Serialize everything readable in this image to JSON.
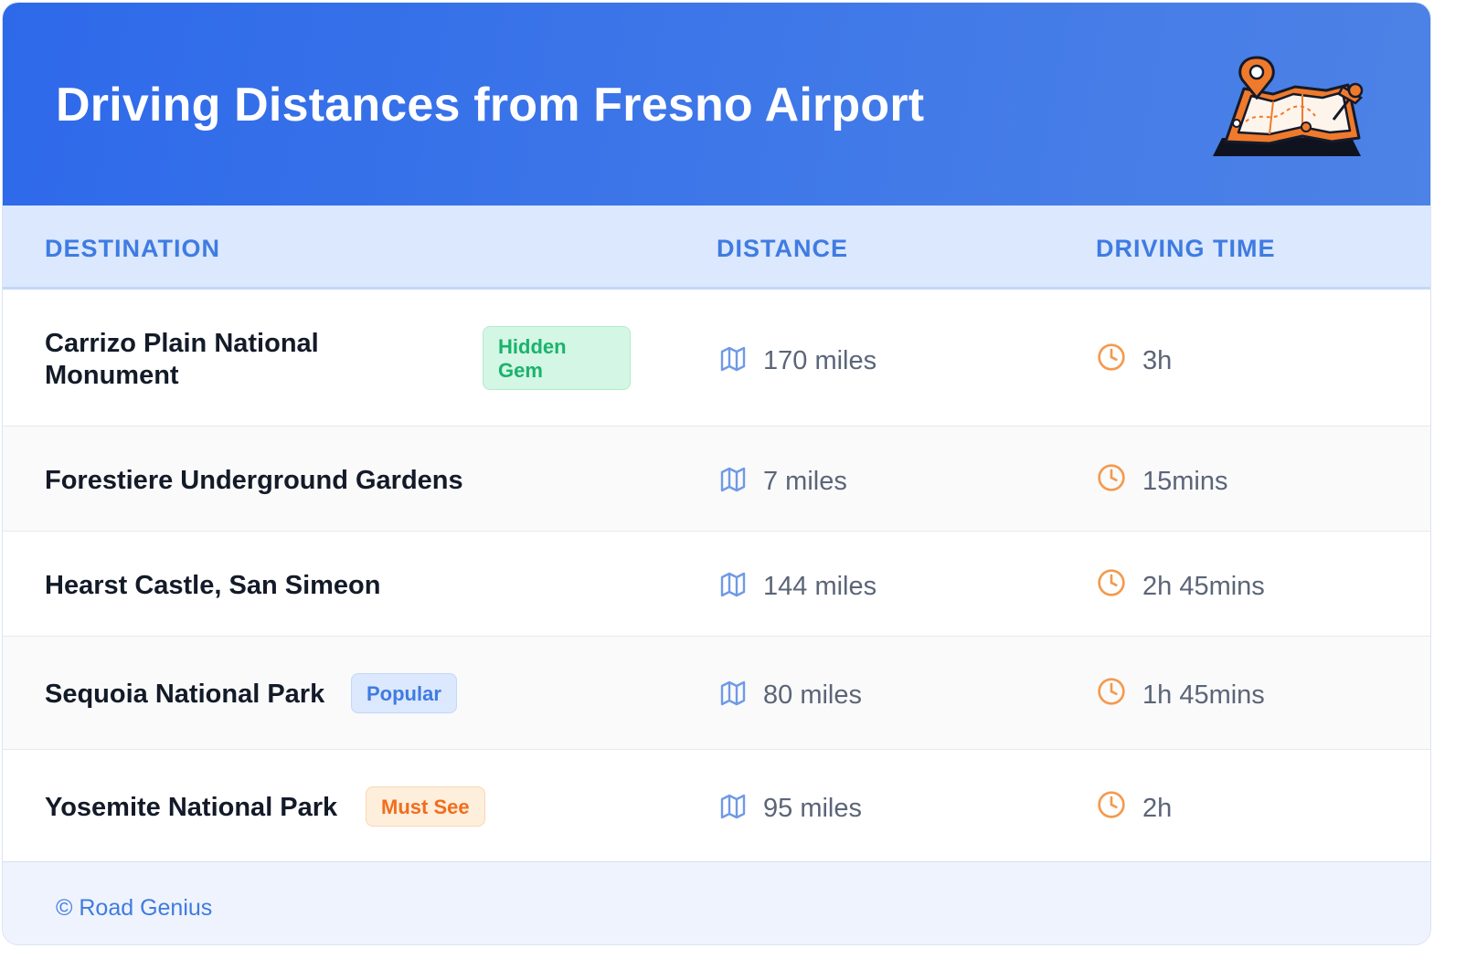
{
  "header": {
    "title": "Driving Distances from Fresno Airport",
    "illustration": "map-with-pins-illustration"
  },
  "table": {
    "columns": [
      "DESTINATION",
      "DISTANCE",
      "DRIVING TIME"
    ],
    "rows": [
      {
        "destination": "Carrizo Plain National Monument",
        "badge": "Hidden Gem",
        "distance": "170 miles",
        "time": "3h"
      },
      {
        "destination": "Forestiere Underground Gardens",
        "badge": "",
        "distance": "7 miles",
        "time": "15mins"
      },
      {
        "destination": "Hearst Castle, San Simeon",
        "badge": "",
        "distance": "144 miles",
        "time": "2h 45mins"
      },
      {
        "destination": "Sequoia National Park",
        "badge": "Popular",
        "distance": "80 miles",
        "time": "1h 45mins"
      },
      {
        "destination": "Yosemite National Park",
        "badge": "Must See",
        "distance": "95 miles",
        "time": "2h"
      }
    ],
    "distance_icon": "map-icon",
    "time_icon": "clock-icon"
  },
  "footer": {
    "credit": "© Road Genius"
  },
  "colors": {
    "header_bg": "#2e69ea",
    "accent_blue": "#3f7be1",
    "badge_green": "#1ab36d",
    "badge_orange": "#f26d1c",
    "clock_orange": "#f39a4f"
  }
}
